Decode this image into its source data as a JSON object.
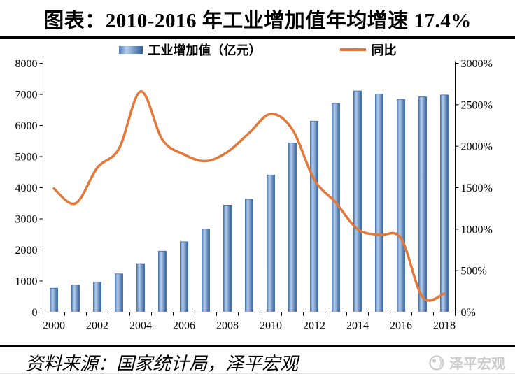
{
  "title": "图表：2010-2016 年工业增加值年均增速 17.4%",
  "legend": {
    "bar_label": "工业增加值（亿元）",
    "line_label": "同比"
  },
  "footer": {
    "source": "资料来源：国家统计局，泽平宏观",
    "watermark": "泽平宏观"
  },
  "colors": {
    "text": "#000000",
    "rule": "#000000",
    "bar_edge": "#4e7cb8",
    "bar_mid": "#b6cdeb",
    "bar_dark": "#2f5f9e",
    "bar_border": "#3a679f",
    "line": "#e2793a",
    "axis": "#000000",
    "watermark": "#cccccc"
  },
  "chart_data": {
    "type": "bar+line combo",
    "title": "图表：2010-2016 年工业增加值年均增速 17.4%",
    "grid": false,
    "legend_position": "top",
    "categories": [
      "2000",
      "2001",
      "2002",
      "2003",
      "2004",
      "2005",
      "2006",
      "2007",
      "2008",
      "2009",
      "2010",
      "2011",
      "2012",
      "2013",
      "2014",
      "2015",
      "2016",
      "2017",
      "2018"
    ],
    "x_tick_labels": [
      "2000",
      "2002",
      "2004",
      "2006",
      "2008",
      "2010",
      "2012",
      "2014",
      "2016",
      "2018"
    ],
    "series": [
      {
        "name": "工业增加值（亿元）",
        "type": "bar",
        "axis": "left",
        "values": [
          770,
          870,
          970,
          1230,
          1560,
          1960,
          2260,
          2670,
          3440,
          3630,
          4410,
          5440,
          6140,
          6710,
          7110,
          7010,
          6840,
          6920,
          6980
        ]
      },
      {
        "name": "同比",
        "type": "line",
        "axis": "right",
        "unit": "%",
        "values": [
          1490,
          1310,
          1740,
          1970,
          2660,
          2080,
          1900,
          1820,
          1930,
          2160,
          2390,
          2200,
          1600,
          1320,
          1000,
          930,
          890,
          180,
          225
        ]
      }
    ],
    "left_axis": {
      "min": 0,
      "max": 8000,
      "step": 1000,
      "tick_labels": [
        "0",
        "1000",
        "2000",
        "3000",
        "4000",
        "5000",
        "6000",
        "7000",
        "8000"
      ]
    },
    "right_axis": {
      "min": 0,
      "max": 3000,
      "step": 500,
      "unit": "%",
      "tick_labels": [
        "0%",
        "500%",
        "1000%",
        "1500%",
        "2000%",
        "2500%",
        "3000%"
      ]
    }
  }
}
